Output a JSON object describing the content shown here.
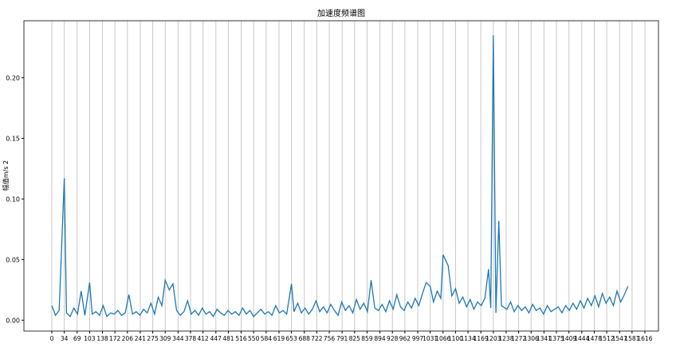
{
  "chart_data": {
    "type": "line",
    "title": "加速度频谱图",
    "ylabel": "幅值m/s 2",
    "color": "#1f77b4",
    "grid": "x",
    "x": [
      0,
      10,
      20,
      34,
      40,
      50,
      60,
      70,
      80,
      90,
      103,
      110,
      120,
      130,
      140,
      150,
      160,
      170,
      180,
      190,
      200,
      210,
      220,
      230,
      240,
      250,
      260,
      270,
      280,
      290,
      300,
      309,
      320,
      330,
      340,
      350,
      360,
      370,
      380,
      390,
      400,
      410,
      420,
      430,
      440,
      450,
      460,
      470,
      480,
      490,
      500,
      510,
      520,
      530,
      540,
      550,
      560,
      570,
      580,
      590,
      600,
      610,
      620,
      630,
      640,
      653,
      660,
      670,
      680,
      690,
      700,
      710,
      720,
      730,
      740,
      750,
      760,
      770,
      780,
      790,
      800,
      810,
      820,
      830,
      840,
      850,
      860,
      870,
      880,
      890,
      900,
      910,
      920,
      930,
      940,
      950,
      960,
      970,
      980,
      990,
      1000,
      1010,
      1020,
      1031,
      1040,
      1050,
      1060,
      1066,
      1080,
      1090,
      1100,
      1110,
      1120,
      1130,
      1140,
      1150,
      1160,
      1170,
      1180,
      1190,
      1196,
      1203,
      1210,
      1218,
      1225,
      1240,
      1250,
      1260,
      1270,
      1280,
      1290,
      1300,
      1310,
      1320,
      1330,
      1340,
      1350,
      1360,
      1370,
      1380,
      1390,
      1400,
      1410,
      1420,
      1430,
      1440,
      1450,
      1460,
      1470,
      1480,
      1490,
      1500,
      1510,
      1520,
      1530,
      1540,
      1550,
      1560,
      1570
    ],
    "values": [
      0.012,
      0.004,
      0.008,
      0.117,
      0.006,
      0.003,
      0.01,
      0.005,
      0.024,
      0.004,
      0.031,
      0.005,
      0.007,
      0.004,
      0.012,
      0.003,
      0.006,
      0.005,
      0.008,
      0.004,
      0.006,
      0.021,
      0.005,
      0.007,
      0.004,
      0.009,
      0.006,
      0.014,
      0.005,
      0.019,
      0.012,
      0.033,
      0.025,
      0.03,
      0.008,
      0.004,
      0.007,
      0.016,
      0.005,
      0.008,
      0.004,
      0.01,
      0.005,
      0.007,
      0.003,
      0.009,
      0.006,
      0.004,
      0.008,
      0.005,
      0.007,
      0.004,
      0.01,
      0.005,
      0.008,
      0.003,
      0.006,
      0.009,
      0.005,
      0.007,
      0.004,
      0.012,
      0.006,
      0.008,
      0.005,
      0.03,
      0.007,
      0.014,
      0.006,
      0.01,
      0.005,
      0.009,
      0.016,
      0.007,
      0.011,
      0.006,
      0.013,
      0.008,
      0.004,
      0.015,
      0.008,
      0.012,
      0.006,
      0.017,
      0.009,
      0.014,
      0.007,
      0.033,
      0.01,
      0.008,
      0.013,
      0.007,
      0.016,
      0.009,
      0.021,
      0.011,
      0.008,
      0.015,
      0.01,
      0.018,
      0.012,
      0.022,
      0.031,
      0.028,
      0.015,
      0.024,
      0.018,
      0.054,
      0.045,
      0.02,
      0.026,
      0.014,
      0.019,
      0.011,
      0.017,
      0.009,
      0.015,
      0.012,
      0.018,
      0.042,
      0.01,
      0.235,
      0.006,
      0.082,
      0.012,
      0.009,
      0.015,
      0.007,
      0.012,
      0.008,
      0.011,
      0.006,
      0.013,
      0.008,
      0.01,
      0.005,
      0.012,
      0.007,
      0.009,
      0.011,
      0.006,
      0.012,
      0.008,
      0.014,
      0.009,
      0.016,
      0.01,
      0.018,
      0.012,
      0.02,
      0.011,
      0.022,
      0.014,
      0.019,
      0.012,
      0.024,
      0.015,
      0.021,
      0.028
    ],
    "xlim": [
      -76,
      1653
    ],
    "ylim": [
      -0.009,
      0.247
    ],
    "xticks": [
      0,
      34,
      69,
      103,
      138,
      172,
      206,
      241,
      275,
      309,
      344,
      378,
      412,
      447,
      481,
      516,
      550,
      584,
      619,
      653,
      688,
      722,
      756,
      791,
      825,
      859,
      894,
      928,
      962,
      997,
      1031,
      1066,
      1100,
      1134,
      1169,
      1203,
      1238,
      1272,
      1306,
      1341,
      1375,
      1409,
      1444,
      1478,
      1512,
      1547,
      1581,
      1616
    ],
    "yticks": [
      {
        "value": 0,
        "label": "0.00"
      },
      {
        "value": 0.05,
        "label": "0.05"
      },
      {
        "value": 0.1,
        "label": "0.10"
      },
      {
        "value": 0.15,
        "label": "0.15"
      },
      {
        "value": 0.2,
        "label": "0.20"
      }
    ]
  }
}
